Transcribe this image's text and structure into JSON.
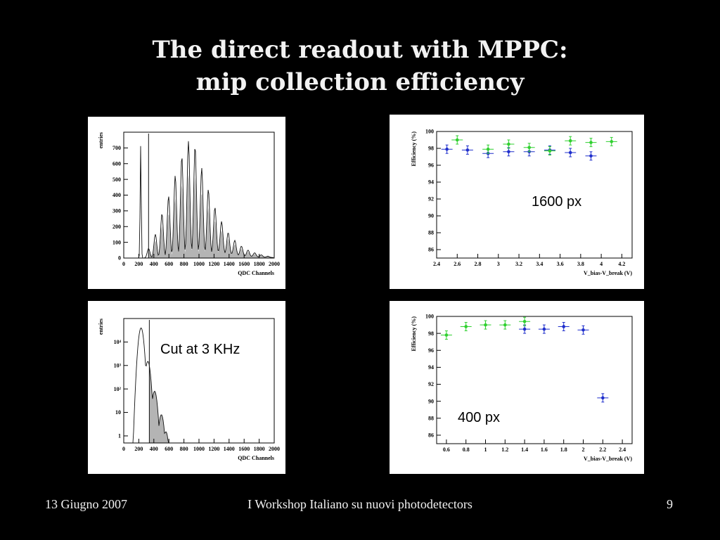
{
  "slide": {
    "title_line1": "The direct readout with MPPC:",
    "title_line2": "mip collection efficiency",
    "footer_date": "13 Giugno 2007",
    "footer_event": "I Workshop Italiano su nuovi photodetectors",
    "footer_page": "9"
  },
  "chart_data": [
    {
      "type": "area",
      "ylabel": "entries",
      "xlabel": "QDC Channels",
      "xlim": [
        0,
        2000
      ],
      "ylim": [
        0,
        800
      ],
      "x_ticks": [
        0,
        200,
        400,
        600,
        800,
        1000,
        1200,
        1400,
        1600,
        1800,
        2000
      ],
      "y_ticks": [
        0,
        100,
        200,
        300,
        400,
        500,
        600,
        700
      ],
      "cut_x": 330,
      "pedestal": {
        "x": 225,
        "y": 715
      },
      "peak_spacing": 88,
      "peaks": [
        {
          "x": 330,
          "y": 60
        },
        {
          "x": 420,
          "y": 150
        },
        {
          "x": 508,
          "y": 280
        },
        {
          "x": 596,
          "y": 390
        },
        {
          "x": 684,
          "y": 520
        },
        {
          "x": 772,
          "y": 640
        },
        {
          "x": 860,
          "y": 735
        },
        {
          "x": 948,
          "y": 700
        },
        {
          "x": 1036,
          "y": 560
        },
        {
          "x": 1124,
          "y": 420
        },
        {
          "x": 1212,
          "y": 300
        },
        {
          "x": 1300,
          "y": 205
        },
        {
          "x": 1388,
          "y": 140
        },
        {
          "x": 1476,
          "y": 95
        },
        {
          "x": 1564,
          "y": 62
        },
        {
          "x": 1652,
          "y": 40
        },
        {
          "x": 1740,
          "y": 25
        },
        {
          "x": 1828,
          "y": 14
        },
        {
          "x": 1916,
          "y": 7
        }
      ]
    },
    {
      "type": "scatter",
      "ylabel": "Efficiency (%)",
      "xlabel": "V_bias-V_break (V)",
      "annotation": "1600 px",
      "xlim": [
        2.4,
        4.3
      ],
      "ylim": [
        85,
        100
      ],
      "x_ticks": [
        2.4,
        2.6,
        2.8,
        3,
        3.2,
        3.4,
        3.6,
        3.8,
        4,
        4.2
      ],
      "x_tick_labels": [
        "2.4",
        "2.6",
        "2.8",
        "3",
        "3.2",
        "3.4",
        "3.6",
        "3.8",
        "4",
        "4.2"
      ],
      "y_ticks": [
        86,
        88,
        90,
        92,
        94,
        96,
        98,
        100
      ],
      "series": [
        {
          "color": "#1f2fcc",
          "x": [
            2.5,
            2.7,
            2.9,
            3.1,
            3.3,
            3.5,
            3.7,
            3.9
          ],
          "y": [
            97.9,
            97.8,
            97.4,
            97.6,
            97.6,
            97.8,
            97.5,
            97.1
          ]
        },
        {
          "color": "#2fd02f",
          "x": [
            2.6,
            2.9,
            3.1,
            3.3,
            3.5,
            3.7,
            3.9,
            4.1
          ],
          "y": [
            99.0,
            97.9,
            98.5,
            98.1,
            97.7,
            98.9,
            98.7,
            98.8
          ]
        }
      ]
    },
    {
      "type": "area",
      "log_y": true,
      "ylabel": "entries",
      "xlabel": "QDC Channels",
      "annotation": "Cut at 3 KHz",
      "xlim": [
        0,
        2000
      ],
      "ylim": [
        0.5,
        100000
      ],
      "x_ticks": [
        0,
        200,
        400,
        600,
        800,
        1000,
        1200,
        1400,
        1600,
        1800,
        2000
      ],
      "y_ticks": [
        1,
        10,
        100,
        1000,
        10000
      ],
      "y_tick_labels": [
        "1",
        "10",
        "10²",
        "10³",
        "10⁴"
      ],
      "cut_x": 340,
      "peaks": [
        {
          "x": 230,
          "y": 40000
        },
        {
          "x": 320,
          "y": 1500
        },
        {
          "x": 410,
          "y": 80
        },
        {
          "x": 500,
          "y": 8
        },
        {
          "x": 560,
          "y": 1.5
        }
      ]
    },
    {
      "type": "scatter",
      "ylabel": "Efficiency (%)",
      "xlabel": "V_bias-V_break (V)",
      "annotation": "400 px",
      "xlim": [
        0.5,
        2.5
      ],
      "ylim": [
        85,
        100
      ],
      "x_ticks": [
        0.6,
        0.8,
        1,
        1.2,
        1.4,
        1.6,
        1.8,
        2,
        2.2,
        2.4
      ],
      "x_tick_labels": [
        "0.6",
        "0.8",
        "1",
        "1.2",
        "1.4",
        "1.6",
        "1.8",
        "2",
        "2.2",
        "2.4"
      ],
      "y_ticks": [
        86,
        88,
        90,
        92,
        94,
        96,
        98,
        100
      ],
      "series": [
        {
          "color": "#1f2fcc",
          "x": [
            1.4,
            1.6,
            1.8,
            2.0,
            2.2
          ],
          "y": [
            98.5,
            98.5,
            98.8,
            98.4,
            90.4
          ]
        },
        {
          "color": "#2fd02f",
          "x": [
            0.6,
            0.8,
            1.0,
            1.2,
            1.4
          ],
          "y": [
            97.8,
            98.8,
            99.0,
            99.0,
            99.4
          ]
        }
      ]
    }
  ]
}
